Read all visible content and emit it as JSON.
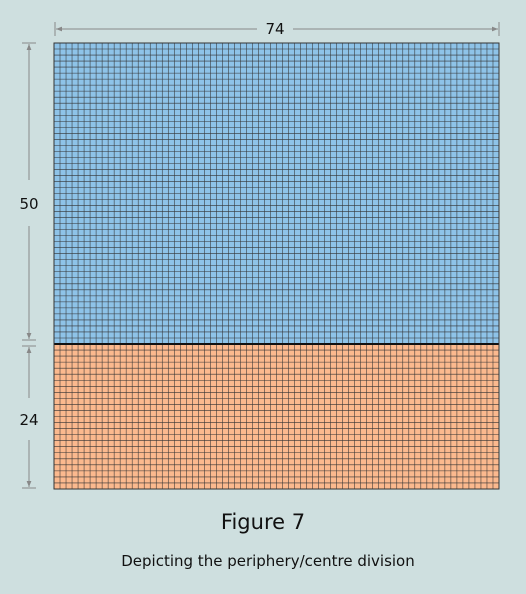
{
  "figure": {
    "title": "Figure 7",
    "caption": "Depicting the periphery/centre division"
  },
  "grid": {
    "width_label": "74",
    "upper_label": "50",
    "lower_label": "24",
    "columns": 74,
    "upper_rows": 50,
    "lower_rows": 24,
    "upper_color": "#8ec3e8",
    "lower_color": "#fbb98e",
    "line_color": "#333333"
  }
}
